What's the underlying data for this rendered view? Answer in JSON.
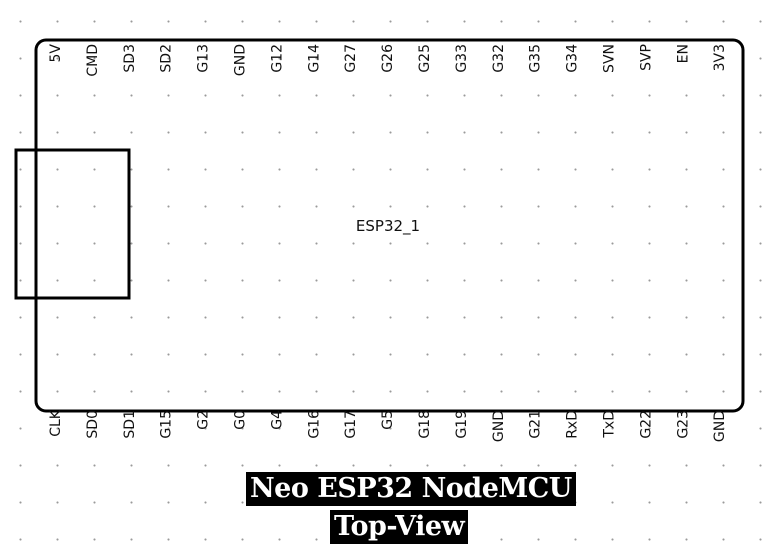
{
  "component": {
    "name": "ESP32_1",
    "pins_top": [
      "5V",
      "CMD",
      "SD3",
      "SD2",
      "G13",
      "GND",
      "G12",
      "G14",
      "G27",
      "G26",
      "G25",
      "G33",
      "G32",
      "G35",
      "G34",
      "SVN",
      "SVP",
      "EN",
      "3V3"
    ],
    "pins_bottom": [
      "CLK",
      "SD0",
      "SD1",
      "G15",
      "G2",
      "G0",
      "G4",
      "G16",
      "G17",
      "G5",
      "G18",
      "G19",
      "GND",
      "G21",
      "RxD",
      "TxD",
      "G22",
      "G23",
      "GND"
    ]
  },
  "caption": {
    "line1": "Neo ESP32 NodeMCU",
    "line2": "Top-View"
  }
}
